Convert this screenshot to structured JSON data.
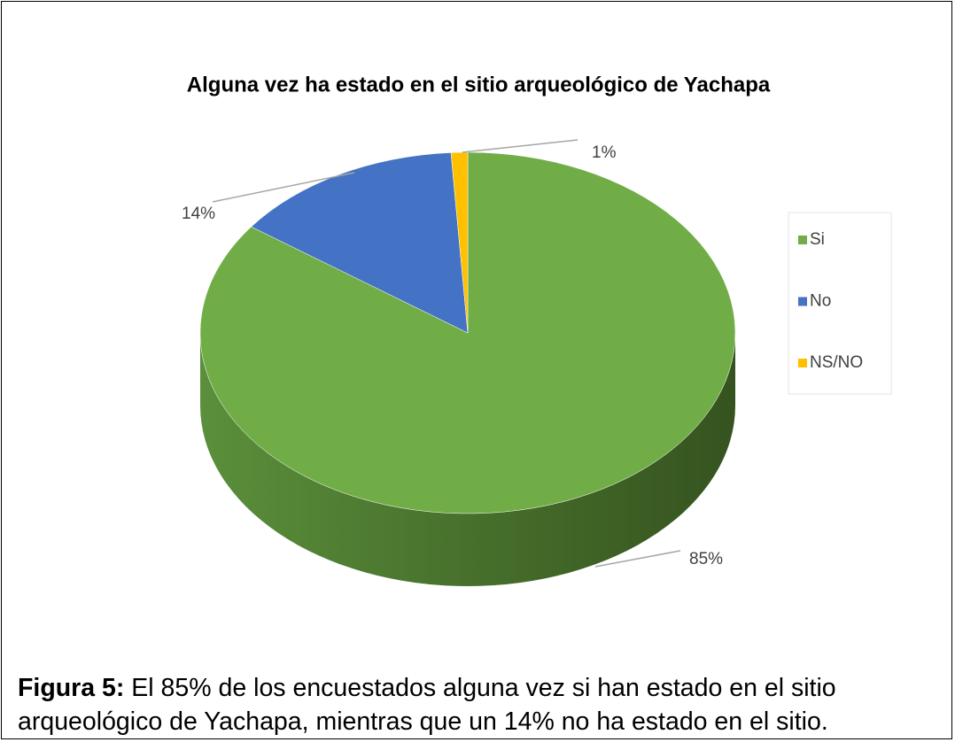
{
  "chart_data": {
    "type": "pie",
    "title": "Alguna vez ha estado en el sitio arqueológico de Yachapa",
    "categories": [
      "Si",
      "No",
      "NS/NO"
    ],
    "values": [
      85,
      14,
      1
    ],
    "value_labels": [
      "85%",
      "14%",
      "1%"
    ],
    "colors": [
      "#70ad47",
      "#4472c4",
      "#ffc000"
    ],
    "legend": "right"
  },
  "caption": {
    "label": "Figura 5:",
    "text": "El 85% de los encuestados alguna vez si han estado en el sitio arqueológico de Yachapa, mientras que un 14% no ha estado en el sitio."
  }
}
